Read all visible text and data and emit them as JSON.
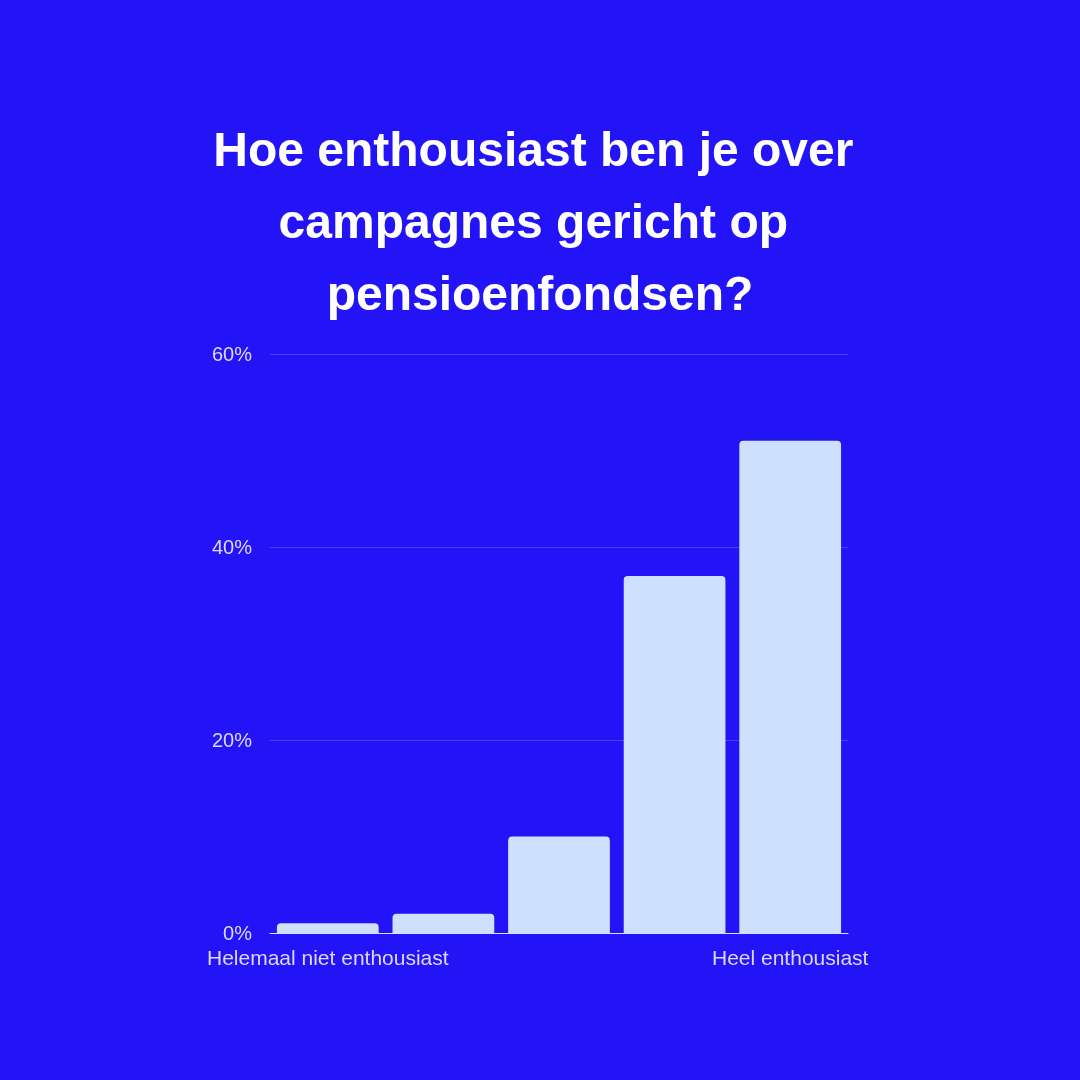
{
  "chart_data": {
    "type": "bar",
    "title": "Hoe enthousiast ben je over campagnes gericht op pensioenfondsen?",
    "categories": [
      "Helemaal niet enthousiast",
      null,
      null,
      null,
      "Heel enthousiast"
    ],
    "values": [
      1,
      2,
      10,
      37,
      51
    ],
    "color": "#cde0fd",
    "ylim": [
      0,
      60
    ],
    "yticks": [
      {
        "value": 0,
        "label": "0%"
      },
      {
        "value": 20,
        "label": "20%"
      },
      {
        "value": 40,
        "label": "40%"
      },
      {
        "value": 60,
        "label": "60%"
      }
    ],
    "grid": "y"
  }
}
